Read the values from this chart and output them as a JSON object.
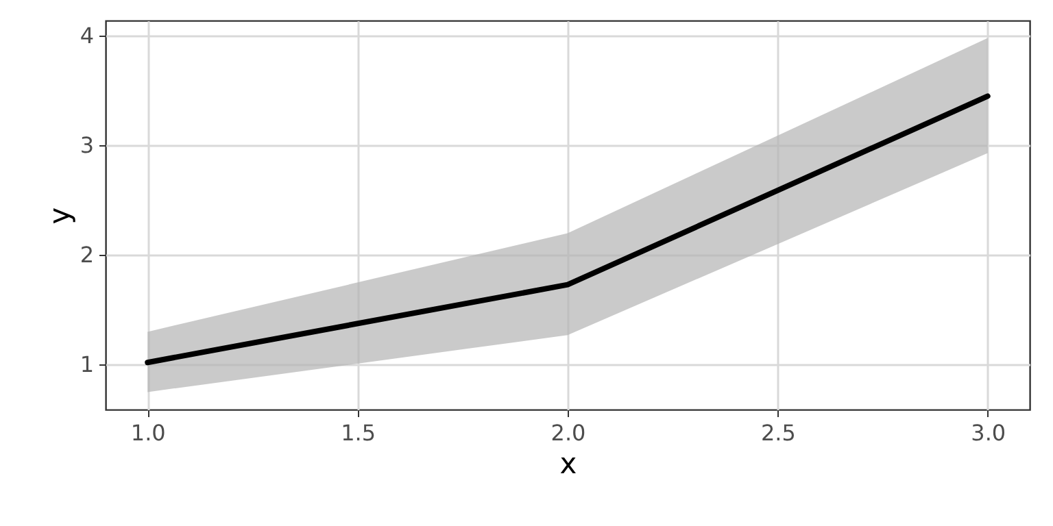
{
  "chart_data": {
    "type": "line",
    "xlabel": "x",
    "ylabel": "y",
    "x": [
      1,
      2,
      3
    ],
    "series": [
      {
        "color": "#000000",
        "values": [
          1.02,
          1.73,
          3.45
        ],
        "lower": [
          0.75,
          1.27,
          2.93
        ],
        "upper": [
          1.3,
          2.2,
          3.98
        ]
      }
    ],
    "xlim": [
      0.9,
      3.1
    ],
    "xticks": [
      {
        "value": 1,
        "label": "1.0"
      },
      1.5,
      {
        "value": 2,
        "label": "2.0"
      },
      2.5,
      {
        "value": 3,
        "label": "3.0"
      }
    ],
    "ylim": [
      0.59,
      4.14
    ],
    "yticks": [
      1,
      2,
      3,
      4
    ],
    "grid": true,
    "marker": "none",
    "line_style": "solid"
  }
}
